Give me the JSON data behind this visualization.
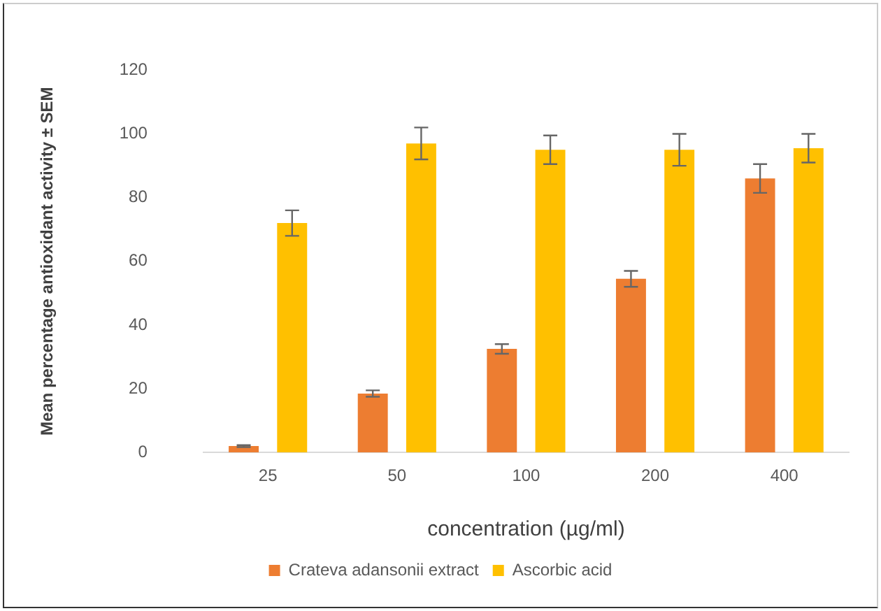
{
  "chart_data": {
    "type": "bar",
    "xlabel": "concentration (µg/ml)",
    "ylabel": "Mean percentage antioxidant activity ± SEM",
    "categories": [
      "25",
      "50",
      "100",
      "200",
      "400"
    ],
    "series": [
      {
        "name": "Crateva adansonii extract",
        "color": "#ed7d31",
        "values": [
          2,
          18.5,
          32.5,
          54.5,
          86
        ],
        "errors": [
          0.3,
          1,
          1.5,
          2.5,
          4.5
        ]
      },
      {
        "name": "Ascorbic acid",
        "color": "#ffc000",
        "values": [
          72,
          97,
          95,
          95,
          95.5
        ],
        "errors": [
          4,
          5,
          4.5,
          5,
          4.5
        ]
      }
    ],
    "ylim": [
      0,
      120
    ],
    "yticks": [
      0,
      20,
      40,
      60,
      80,
      100,
      120
    ],
    "grid": false,
    "legend": "bottom"
  }
}
